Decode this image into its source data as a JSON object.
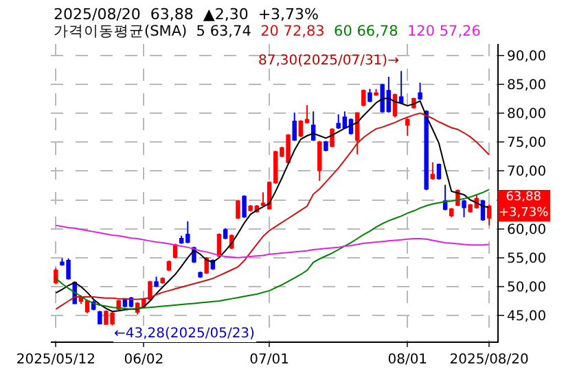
{
  "chart_data": {
    "type": "candlestick",
    "categories": [
      "2025/05/12",
      null,
      null,
      null,
      null,
      null,
      null,
      null,
      null,
      null,
      null,
      null,
      null,
      null,
      "06/02",
      null,
      null,
      null,
      null,
      null,
      null,
      null,
      null,
      null,
      null,
      null,
      null,
      null,
      null,
      null,
      null,
      null,
      null,
      null,
      "07/01",
      null,
      null,
      null,
      null,
      null,
      null,
      null,
      null,
      null,
      null,
      null,
      null,
      null,
      null,
      null,
      null,
      null,
      null,
      null,
      null,
      null,
      "08/01",
      null,
      null,
      null,
      null,
      null,
      null,
      null,
      null,
      null,
      null,
      null,
      null,
      "2025/08/20"
    ],
    "ohlc": [
      [
        50.7,
        53.2,
        50.4,
        52.8
      ],
      [
        54.2,
        54.9,
        53.6,
        53.8
      ],
      [
        54.5,
        54.9,
        51.2,
        51.4
      ],
      [
        50.7,
        50.9,
        47.0,
        47.1
      ],
      [
        47.5,
        48.5,
        47.0,
        48.2
      ],
      [
        45.7,
        47.7,
        45.4,
        47.5
      ],
      [
        47.3,
        47.6,
        45.9,
        46.1
      ],
      [
        45.6,
        45.8,
        43.5,
        43.6
      ],
      [
        43.5,
        45.9,
        43.4,
        45.7
      ],
      [
        43.6,
        45.6,
        43.28,
        45.4
      ],
      [
        46.1,
        47.7,
        45.9,
        47.5
      ],
      [
        47.7,
        48.0,
        46.4,
        46.6
      ],
      [
        48.0,
        48.2,
        46.4,
        46.6
      ],
      [
        45.6,
        47.3,
        45.2,
        47.1
      ],
      [
        46.6,
        48.0,
        46.4,
        47.8
      ],
      [
        47.8,
        51.0,
        47.6,
        50.8
      ],
      [
        50.8,
        51.7,
        49.9,
        50.1
      ],
      [
        50.7,
        51.6,
        50.5,
        51.4
      ],
      [
        52.9,
        54.5,
        52.7,
        54.3
      ],
      [
        55.1,
        57.4,
        54.9,
        57.2
      ],
      [
        58.3,
        58.8,
        57.4,
        57.6
      ],
      [
        59.0,
        61.3,
        57.5,
        57.7
      ],
      [
        56.7,
        56.9,
        54.1,
        54.3
      ],
      [
        52.4,
        52.6,
        51.5,
        51.7
      ],
      [
        52.4,
        55.1,
        52.2,
        54.9
      ],
      [
        54.5,
        54.7,
        52.9,
        53.1
      ],
      [
        55.3,
        59.2,
        55.1,
        59.0
      ],
      [
        59.8,
        60.1,
        58.2,
        58.4
      ],
      [
        56.7,
        59.0,
        56.5,
        58.8
      ],
      [
        61.9,
        65.0,
        61.7,
        64.8
      ],
      [
        65.6,
        65.8,
        61.9,
        62.1
      ],
      [
        63.2,
        64.1,
        63.0,
        63.9
      ],
      [
        63.0,
        64.1,
        62.8,
        63.9
      ],
      [
        64.1,
        66.3,
        63.9,
        64.4
      ],
      [
        63.5,
        68.2,
        63.3,
        68.0
      ],
      [
        68.0,
        73.5,
        67.8,
        73.3
      ],
      [
        72.6,
        74.2,
        72.4,
        74.0
      ],
      [
        71.5,
        76.4,
        71.3,
        76.2
      ],
      [
        78.6,
        80.1,
        75.2,
        75.4
      ],
      [
        76.1,
        78.8,
        75.9,
        78.6
      ],
      [
        78.4,
        81.4,
        78.2,
        78.9
      ],
      [
        77.9,
        80.3,
        75.2,
        75.4
      ],
      [
        70.1,
        75.2,
        68.3,
        75.0
      ],
      [
        75.0,
        75.2,
        73.4,
        73.6
      ],
      [
        74.3,
        77.4,
        74.1,
        77.2
      ],
      [
        78.2,
        79.8,
        77.3,
        77.5
      ],
      [
        79.3,
        80.3,
        77.3,
        77.5
      ],
      [
        78.9,
        79.1,
        76.3,
        76.5
      ],
      [
        75.4,
        80.2,
        72.9,
        80.0
      ],
      [
        81.4,
        84.1,
        81.2,
        83.9
      ],
      [
        83.5,
        84.2,
        81.9,
        82.1
      ],
      [
        83.2,
        84.2,
        83.0,
        83.5
      ],
      [
        84.9,
        85.1,
        80.1,
        80.3
      ],
      [
        83.9,
        86.3,
        80.1,
        80.3
      ],
      [
        79.6,
        83.4,
        79.3,
        83.2
      ],
      [
        82.8,
        87.3,
        81.6,
        81.8
      ],
      [
        78.0,
        79.1,
        76.1,
        78.9
      ],
      [
        81.0,
        82.7,
        80.8,
        82.5
      ],
      [
        83.5,
        85.3,
        82.3,
        82.5
      ],
      [
        80.3,
        80.5,
        66.7,
        66.9
      ],
      [
        68.7,
        71.5,
        68.5,
        69.4
      ],
      [
        71.1,
        71.3,
        68.5,
        68.7
      ],
      [
        64.8,
        67.6,
        63.2,
        63.4
      ],
      [
        62.3,
        63.6,
        62.0,
        63.4
      ],
      [
        64.1,
        66.8,
        63.9,
        66.6
      ],
      [
        64.8,
        65.0,
        62.0,
        63.7
      ],
      [
        63.0,
        64.3,
        62.8,
        64.1
      ],
      [
        63.7,
        65.9,
        63.5,
        65.2
      ],
      [
        64.8,
        65.0,
        61.4,
        61.58
      ],
      [
        61.9,
        64.2,
        60.6,
        63.88
      ]
    ],
    "colors": [
      "#ff0000",
      "#0000ff",
      "#0000ff",
      "#0000ff",
      "#ff0000",
      "#ff0000",
      "#0000ff",
      "#0000ff",
      "#ff0000",
      "#ff0000",
      "#ff0000",
      "#0000ff",
      "#0000ff",
      "#ff0000",
      "#ff0000",
      "#ff0000",
      "#0000ff",
      "#ff0000",
      "#ff0000",
      "#ff0000",
      "#0000ff",
      "#0000ff",
      "#0000ff",
      "#0000ff",
      "#ff0000",
      "#0000ff",
      "#ff0000",
      "#0000ff",
      "#ff0000",
      "#ff0000",
      "#0000ff",
      "#ff0000",
      "#ff0000",
      "#ff0000",
      "#ff0000",
      "#ff0000",
      "#ff0000",
      "#ff0000",
      "#0000ff",
      "#ff0000",
      "#ff0000",
      "#0000ff",
      "#ff0000",
      "#0000ff",
      "#ff0000",
      "#0000ff",
      "#0000ff",
      "#0000ff",
      "#ff0000",
      "#ff0000",
      "#0000ff",
      "#ff0000",
      "#0000ff",
      "#0000ff",
      "#ff0000",
      "#0000ff",
      "#ff0000",
      "#ff0000",
      "#0000ff",
      "#0000ff",
      "#ff0000",
      "#0000ff",
      "#0000ff",
      "#ff0000",
      "#ff0000",
      "#0000ff",
      "#ff0000",
      "#ff0000",
      "#0000ff",
      "#ff0000"
    ],
    "legend_title": "가격이동평균(SMA)",
    "series": [
      {
        "type": "line",
        "name": "5 63,74",
        "color": "#000000",
        "values": [
          48.9,
          49.5,
          50.2,
          50.7,
          50.0,
          49.0,
          47.8,
          46.9,
          46.2,
          45.7,
          45.8,
          46.0,
          46.1,
          46.1,
          46.5,
          47.5,
          48.8,
          49.9,
          51.0,
          52.1,
          53.5,
          55.0,
          56.3,
          55.6,
          54.6,
          54.2,
          55.0,
          56.2,
          57.5,
          59.2,
          61.0,
          62.5,
          63.2,
          63.8,
          64.4,
          66.5,
          68.8,
          71.2,
          73.6,
          75.5,
          76.1,
          76.5,
          76.1,
          75.7,
          76.2,
          76.8,
          77.4,
          77.9,
          78.4,
          79.6,
          80.7,
          81.8,
          82.5,
          82.6,
          82.0,
          81.7,
          81.3,
          81.6,
          82.1,
          79.5,
          77.2,
          74.8,
          70.5,
          66.5,
          66.2,
          65.9,
          65.0,
          64.5,
          63.9,
          63.7
        ]
      },
      {
        "type": "line",
        "name": "20 72,83",
        "color": "#d01010",
        "values": [
          46.1,
          46.8,
          47.5,
          48.2,
          48.2,
          48.2,
          48.2,
          48.1,
          48.0,
          48.0,
          47.9,
          47.9,
          47.8,
          47.8,
          47.9,
          48.1,
          48.6,
          49.0,
          49.3,
          49.6,
          49.9,
          50.2,
          50.5,
          50.8,
          51.1,
          51.4,
          51.9,
          52.4,
          52.9,
          53.4,
          54.5,
          55.9,
          57.3,
          58.7,
          59.7,
          60.4,
          61.1,
          61.8,
          62.5,
          63.2,
          63.9,
          66.0,
          66.9,
          68.1,
          69.3,
          70.5,
          71.9,
          73.3,
          74.8,
          75.8,
          76.6,
          77.3,
          77.6,
          78.0,
          78.4,
          78.9,
          79.3,
          79.7,
          80.0,
          79.6,
          79.1,
          78.5,
          78.0,
          77.5,
          77.2,
          76.6,
          75.9,
          75.0,
          73.9,
          72.8
        ]
      },
      {
        "type": "line",
        "name": "60 66,78",
        "color": "#008000",
        "values": [
          51.4,
          50.5,
          49.7,
          49.0,
          48.3,
          47.6,
          47.1,
          46.8,
          46.6,
          46.4,
          46.3,
          46.2,
          46.1,
          46.2,
          46.3,
          46.4,
          46.5,
          46.6,
          46.7,
          46.8,
          46.9,
          47.0,
          47.1,
          47.2,
          47.3,
          47.4,
          47.5,
          47.7,
          47.9,
          48.1,
          48.3,
          48.5,
          48.7,
          49.0,
          49.3,
          49.8,
          50.3,
          50.9,
          51.5,
          52.1,
          52.8,
          54.2,
          54.8,
          55.3,
          55.8,
          56.4,
          57.0,
          57.6,
          58.3,
          59.0,
          59.6,
          60.3,
          60.9,
          61.4,
          61.8,
          62.2,
          62.7,
          63.1,
          63.6,
          64.0,
          64.3,
          64.5,
          64.7,
          64.8,
          65.0,
          65.2,
          65.5,
          65.9,
          66.3,
          66.8
        ]
      },
      {
        "type": "line",
        "name": "120 57,26",
        "color": "#e020e0",
        "values": [
          60.6,
          60.4,
          60.2,
          60.1,
          59.9,
          59.7,
          59.5,
          59.3,
          59.1,
          58.9,
          58.8,
          58.6,
          58.4,
          58.3,
          58.1,
          57.9,
          57.7,
          57.6,
          57.4,
          57.2,
          57.0,
          56.8,
          56.5,
          56.2,
          56.0,
          55.7,
          55.4,
          55.2,
          55.1,
          55.0,
          55.1,
          55.2,
          55.3,
          55.4,
          55.6,
          55.7,
          55.8,
          55.9,
          56.0,
          56.1,
          56.2,
          56.4,
          56.5,
          56.6,
          56.7,
          56.8,
          57.0,
          57.1,
          57.3,
          57.5,
          57.6,
          57.7,
          57.8,
          57.9,
          58.0,
          58.1,
          58.2,
          58.3,
          58.3,
          58.2,
          58.0,
          57.8,
          57.6,
          57.5,
          57.4,
          57.3,
          57.2,
          57.2,
          57.2,
          57.3
        ]
      }
    ],
    "annotations": [
      "2025/08/20  63,88  ▲2,30  +3,73%",
      "87,30(2025/07/31)→",
      "←43,28(2025/05/23)",
      {
        "text": "63,88\n+3,73%",
        "y": 63.88
      }
    ],
    "ylim": [
      40.5,
      92
    ],
    "yticks": [
      {
        "value": 45,
        "label": "45,00"
      },
      {
        "value": 50,
        "label": "50,00"
      },
      {
        "value": 55,
        "label": "55,00"
      },
      {
        "value": 60,
        "label": "60,00"
      },
      {
        "value": 65,
        "label": null
      },
      {
        "value": 70,
        "label": "70,00"
      },
      {
        "value": 75,
        "label": "75,00"
      },
      {
        "value": 80,
        "label": "80,00"
      },
      {
        "value": 85,
        "label": "85,00"
      },
      {
        "value": 90,
        "label": "90,00"
      }
    ],
    "grid": true
  }
}
